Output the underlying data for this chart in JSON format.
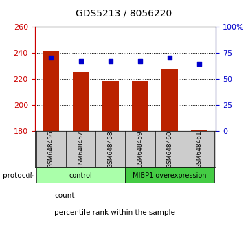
{
  "title": "GDS5213 / 8056220",
  "samples": [
    "GSM648456",
    "GSM648457",
    "GSM648458",
    "GSM648459",
    "GSM648460",
    "GSM648461"
  ],
  "bar_values": [
    241.0,
    225.5,
    218.5,
    218.5,
    227.5,
    181.0
  ],
  "bar_baseline": 180,
  "percentile_values": [
    70.5,
    67.0,
    67.0,
    67.0,
    70.5,
    64.5
  ],
  "left_ylim": [
    180,
    260
  ],
  "left_yticks": [
    180,
    200,
    220,
    240,
    260
  ],
  "right_ylim": [
    0,
    100
  ],
  "right_yticks": [
    0,
    25,
    50,
    75,
    100
  ],
  "right_yticklabels": [
    "0",
    "25",
    "50",
    "75",
    "100%"
  ],
  "bar_color": "#bb2200",
  "dot_color": "#0000cc",
  "left_tick_color": "#cc0000",
  "right_tick_color": "#0000cc",
  "ctrl_color": "#aaffaa",
  "mibp_color": "#44cc44",
  "ctrl_label": "control",
  "mibp_label": "MIBP1 overexpression",
  "ctrl_count": 3,
  "mibp_count": 3,
  "protocol_label": "protocol",
  "legend_count_label": "count",
  "legend_percentile_label": "percentile rank within the sample",
  "grid_color": "#000000",
  "sample_bg_color": "#cccccc"
}
